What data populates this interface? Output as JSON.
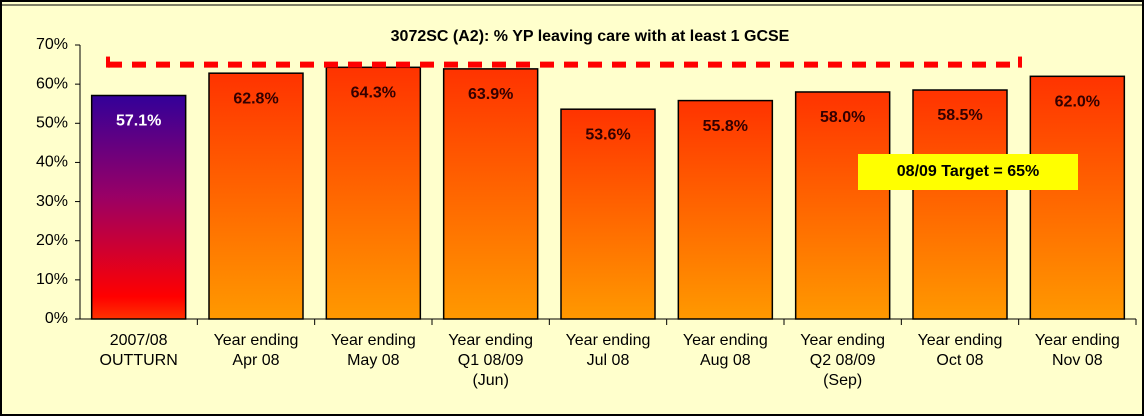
{
  "chart_data": {
    "type": "bar",
    "title": "3072SC (A2): % YP leaving care with at least 1 GCSE",
    "categories": [
      "2007/08\nOUTTURN",
      "Year ending\nApr 08",
      "Year ending\nMay 08",
      "Year ending\nQ1 08/09\n(Jun)",
      "Year ending\nJul 08",
      "Year ending\nAug 08",
      "Year ending\nQ2 08/09\n(Sep)",
      "Year ending\nOct 08",
      "Year ending\nNov 08"
    ],
    "values": [
      57.1,
      62.8,
      64.3,
      63.9,
      53.6,
      55.8,
      58.0,
      58.5,
      62.0
    ],
    "value_labels": [
      "57.1%",
      "62.8%",
      "64.3%",
      "63.9%",
      "53.6%",
      "55.8%",
      "58.0%",
      "58.5%",
      "62.0%"
    ],
    "ylim": [
      0,
      70
    ],
    "yticks": [
      {
        "value": 0,
        "label": "0%"
      },
      {
        "value": 10,
        "label": "10%"
      },
      {
        "value": 20,
        "label": "20%"
      },
      {
        "value": 30,
        "label": "30%"
      },
      {
        "value": 40,
        "label": "40%"
      },
      {
        "value": 50,
        "label": "50%"
      },
      {
        "value": 60,
        "label": "60%"
      },
      {
        "value": 70,
        "label": "70%"
      }
    ],
    "target": {
      "value": 65,
      "label": "08/09 Target = 65%",
      "color": "#ff0000"
    }
  }
}
